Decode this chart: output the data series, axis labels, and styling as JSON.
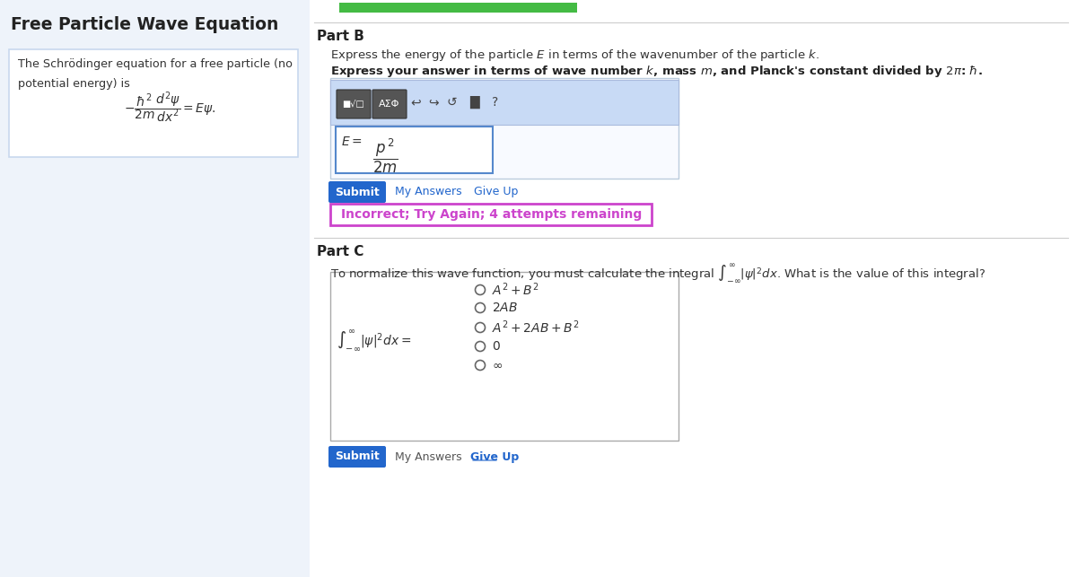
{
  "title": "Free Particle Wave Equation",
  "left_panel_bg": "#eef3fa",
  "right_panel_bg": "#ffffff",
  "left_box_bg": "#ffffff",
  "left_box_border": "#c8d8ee",
  "left_text1": "The Schrödinger equation for a free particle (no",
  "left_text2": "potential energy) is",
  "part_b_label": "Part B",
  "part_b_line1": "Express the energy of the particle $E$ in terms of the wavenumber of the particle $k$.",
  "part_b_line2": "Express your answer in terms of wave number $k$, mass $m$, and Planck's constant divided by $2\\pi$: $\\hbar$.",
  "toolbar_bg": "#c8daf5",
  "answer_box_bg": "#ffffff",
  "answer_box_border": "#5588cc",
  "submit_btn_color": "#2266cc",
  "submit_btn_text": "Submit",
  "my_answers_text": "My Answers",
  "give_up_text": "Give Up",
  "incorrect_box_bg": "#ffffff",
  "incorrect_box_border": "#cc44cc",
  "incorrect_text": "Incorrect; Try Again; 4 attempts remaining",
  "part_c_label": "Part C",
  "part_c_box_border": "#aaaaaa",
  "divider_color": "#cccccc",
  "green_bar_color": "#44bb44",
  "figsize": [
    12.0,
    6.43
  ],
  "dpi": 100
}
